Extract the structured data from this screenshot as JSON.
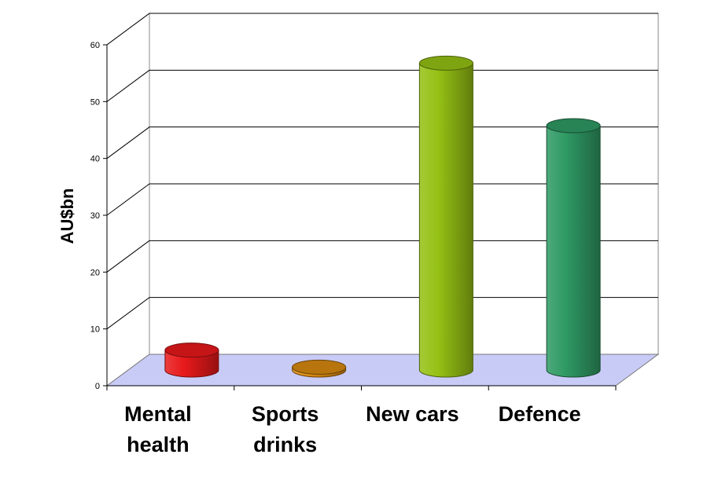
{
  "chart_data": {
    "type": "bar",
    "style": "3d-cylinder",
    "title": "",
    "xlabel": "",
    "ylabel": "AU$bn",
    "ylim": [
      0,
      60
    ],
    "yticks": [
      0,
      10,
      20,
      30,
      40,
      50,
      60
    ],
    "grid": true,
    "legend": "none",
    "categories": [
      {
        "name": "Mental health",
        "lines": [
          "Mental",
          "health"
        ]
      },
      {
        "name": "Sports drinks",
        "lines": [
          "Sports",
          "drinks"
        ]
      },
      {
        "name": "New cars",
        "lines": [
          "New cars"
        ]
      },
      {
        "name": "Defence",
        "lines": [
          "Defence"
        ]
      }
    ],
    "values": [
      3.5,
      0.5,
      54,
      43
    ],
    "colors": {
      "Mental health": "#e8191b",
      "Sports drinks": "#d98a10",
      "New cars": "#95c114",
      "Defence": "#2f9a64",
      "floor": "#c9cbf7",
      "gridline": "#000000"
    }
  }
}
